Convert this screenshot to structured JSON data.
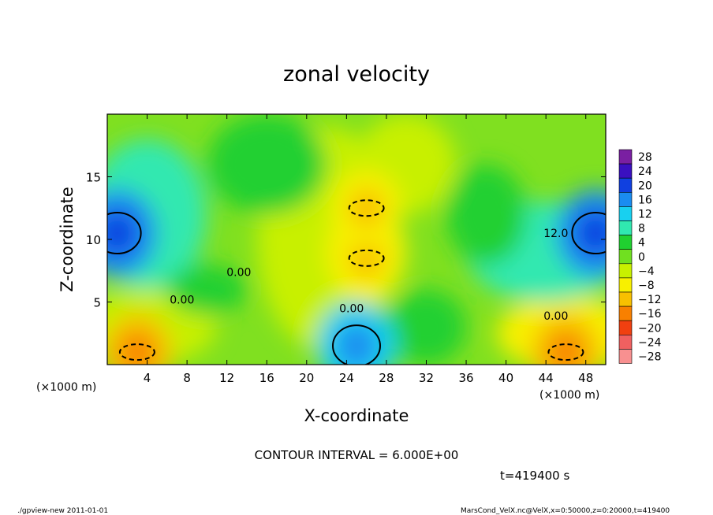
{
  "title": "zonal velocity",
  "xlabel": "X-coordinate",
  "ylabel": "Z-coordinate",
  "x_unit": "(×1000 m)",
  "y_unit": "(×1000 m)",
  "contour_interval": "CONTOUR INTERVAL = 6.000E+00",
  "time_label": "t=419400 s",
  "footer_left": "./gpview-new   2011-01-01",
  "footer_right": "MarsCond_VelX.nc@VelX,x=0:50000,z=0:20000,t=419400",
  "colors": {
    "scale": [
      "#7a1fa2",
      "#3a10c0",
      "#1040e0",
      "#1a8cf0",
      "#18d0f0",
      "#30e8b0",
      "#20d030",
      "#70e020",
      "#c8f000",
      "#f8f000",
      "#f8c000",
      "#f88000",
      "#f04010",
      "#f06060",
      "#f89090"
    ]
  },
  "chart_data": {
    "type": "heatmap",
    "title": "zonal velocity",
    "xlabel": "X-coordinate",
    "ylabel": "Z-coordinate",
    "xlim": [
      0,
      50
    ],
    "ylim": [
      0,
      20
    ],
    "x_ticks": [
      "4",
      "8",
      "12",
      "16",
      "20",
      "24",
      "28",
      "32",
      "36",
      "40",
      "44",
      "48"
    ],
    "x_tick_values": [
      4,
      8,
      12,
      16,
      20,
      24,
      28,
      32,
      36,
      40,
      44,
      48
    ],
    "y_ticks": [
      "5",
      "10",
      "15"
    ],
    "y_tick_values": [
      5,
      10,
      15
    ],
    "colorbar": {
      "labels": [
        "28",
        "24",
        "20",
        "16",
        "12",
        "8",
        "4",
        "0",
        "−4",
        "−8",
        "−12",
        "−16",
        "−20",
        "−24",
        "−28"
      ],
      "levels": [
        28,
        24,
        20,
        16,
        12,
        8,
        4,
        0,
        -4,
        -8,
        -12,
        -16,
        -20,
        -24,
        -28
      ]
    },
    "contour_labels": [
      {
        "text": "0.00",
        "x": 7.5,
        "z": 5.2
      },
      {
        "text": "0.00",
        "x": 24.5,
        "z": 4.5
      },
      {
        "text": "0.00",
        "x": 45.0,
        "z": 3.9
      },
      {
        "text": "12.0",
        "x": 45.0,
        "z": 10.5
      },
      {
        "text": "0.00",
        "x": 13.2,
        "z": 7.4
      }
    ],
    "features": [
      {
        "kind": "max",
        "x": 1,
        "z": 10.5,
        "value": 20
      },
      {
        "kind": "max",
        "x": 49,
        "z": 10.5,
        "value": 20
      },
      {
        "kind": "max",
        "x": 25,
        "z": 1.5,
        "value": 16
      },
      {
        "kind": "min",
        "x": 26,
        "z": 8.5,
        "value": -12
      },
      {
        "kind": "min",
        "x": 26,
        "z": 12.5,
        "value": -12
      },
      {
        "kind": "min",
        "x": 3,
        "z": 1.0,
        "value": -16
      },
      {
        "kind": "min",
        "x": 46,
        "z": 1.0,
        "value": -16
      }
    ]
  }
}
